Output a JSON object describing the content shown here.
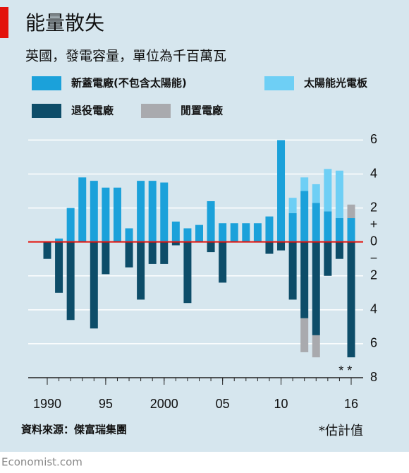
{
  "title": "能量散失",
  "source": "資料來源：傑富瑞集團",
  "credit": "Economist.com",
  "chart_data": {
    "type": "bar",
    "subtitle": "英國，發電容量，單位為千百萬瓦",
    "x": [
      1990,
      1991,
      1992,
      1993,
      1994,
      1995,
      1996,
      1997,
      1998,
      1999,
      2000,
      2001,
      2002,
      2003,
      2004,
      2005,
      2006,
      2007,
      2008,
      2009,
      2010,
      2011,
      2012,
      2013,
      2014,
      2015,
      2016
    ],
    "series": [
      {
        "name": "新蓋電廠(不包含太陽能)",
        "color": "#1ba1da",
        "values": [
          0,
          0.2,
          2.0,
          3.8,
          3.6,
          3.2,
          3.2,
          0.8,
          3.6,
          3.6,
          3.5,
          1.2,
          0.8,
          1.0,
          2.4,
          1.1,
          1.1,
          1.1,
          1.1,
          1.5,
          6.0,
          1.7,
          3.0,
          2.3,
          1.8,
          1.4,
          1.4
        ]
      },
      {
        "name": "太陽能光電板",
        "color": "#6ecff5",
        "values": [
          0,
          0,
          0,
          0,
          0,
          0,
          0,
          0,
          0,
          0,
          0,
          0,
          0,
          0,
          0,
          0,
          0,
          0,
          0,
          0,
          0,
          0.9,
          0.8,
          1.1,
          2.5,
          2.8,
          0
        ]
      },
      {
        "name": "退役電廠",
        "color": "#0d4d69",
        "values": [
          -1.0,
          -3.0,
          -4.6,
          0,
          -5.1,
          -1.9,
          0,
          -1.5,
          -3.4,
          -1.3,
          -1.3,
          -0.2,
          -3.6,
          0,
          -0.6,
          -2.4,
          0,
          0,
          0,
          -0.7,
          -0.5,
          -3.4,
          -4.5,
          -5.5,
          -2.0,
          -1.0,
          -6.8
        ]
      },
      {
        "name": "閒置電廠",
        "color": "#a9aaae",
        "values": [
          0,
          0,
          0,
          0,
          0,
          0,
          0,
          0,
          0,
          0,
          0,
          0,
          0,
          0,
          0,
          0,
          0,
          0,
          0,
          0,
          0,
          0,
          -2.0,
          -1.3,
          0,
          0,
          0.8
        ]
      }
    ],
    "ylim": [
      -8,
      6.6
    ],
    "yticks": [
      6,
      4,
      2,
      0,
      {
        "value": -2,
        "label": "2"
      },
      {
        "value": -4,
        "label": "4"
      },
      {
        "value": -6,
        "label": "6"
      },
      {
        "value": -8,
        "label": "8"
      }
    ],
    "xlim": [
      1988.4,
      2017.2
    ],
    "xticks": [
      1990,
      {
        "value": 1995,
        "label": "95"
      },
      2000,
      {
        "value": 2005,
        "label": "05"
      },
      {
        "value": 2010,
        "label": "10"
      },
      {
        "value": 2016,
        "label": "16"
      }
    ],
    "plus_label": "+",
    "minus_label": "−",
    "estimate_mark": "* *",
    "footnote": "*估計值",
    "grid": true,
    "zero_line_color": "#e3120b"
  }
}
